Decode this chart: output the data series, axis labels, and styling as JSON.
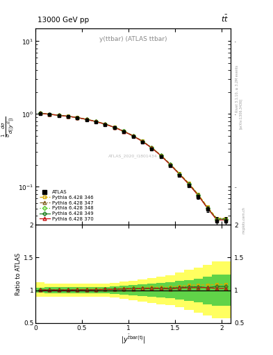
{
  "title_top": "13000 GeV pp",
  "title_right": "tt",
  "plot_label": "y(ttbar) (ATLAS ttbar)",
  "watermark": "ATLAS_2020_I1801434",
  "rivet_label": "Rivet 3.1.10, ≥ 3.2M events",
  "arxiv_label": "[arXiv:1306.3436]",
  "mcplots_label": "mcplots.cern.ch",
  "ylabel_ratio": "Ratio to ATLAS",
  "xlim": [
    0,
    2.1
  ],
  "ylim_main": [
    0.03,
    15
  ],
  "ylim_ratio": [
    0.5,
    2.0
  ],
  "x_pts": [
    0.05,
    0.15,
    0.25,
    0.35,
    0.45,
    0.55,
    0.65,
    0.75,
    0.85,
    0.95,
    1.05,
    1.15,
    1.25,
    1.35,
    1.45,
    1.55,
    1.65,
    1.75,
    1.85,
    1.95,
    2.05
  ],
  "y_atlas": [
    1.02,
    0.985,
    0.955,
    0.925,
    0.885,
    0.835,
    0.78,
    0.715,
    0.645,
    0.565,
    0.488,
    0.41,
    0.332,
    0.26,
    0.196,
    0.143,
    0.104,
    0.073,
    0.049,
    0.034,
    0.034
  ],
  "y_atlas_err": [
    0.035,
    0.028,
    0.024,
    0.022,
    0.02,
    0.018,
    0.017,
    0.015,
    0.014,
    0.013,
    0.012,
    0.01,
    0.009,
    0.008,
    0.007,
    0.007,
    0.006,
    0.005,
    0.004,
    0.004,
    0.004
  ],
  "y_p346": [
    1.03,
    0.995,
    0.965,
    0.935,
    0.898,
    0.848,
    0.793,
    0.73,
    0.66,
    0.582,
    0.505,
    0.425,
    0.347,
    0.272,
    0.205,
    0.152,
    0.112,
    0.079,
    0.053,
    0.037,
    0.037
  ],
  "y_p347": [
    1.028,
    0.993,
    0.963,
    0.932,
    0.895,
    0.845,
    0.79,
    0.728,
    0.658,
    0.58,
    0.503,
    0.423,
    0.344,
    0.269,
    0.203,
    0.149,
    0.109,
    0.077,
    0.051,
    0.036,
    0.036
  ],
  "y_p348": [
    1.025,
    0.99,
    0.96,
    0.929,
    0.892,
    0.842,
    0.787,
    0.725,
    0.655,
    0.577,
    0.5,
    0.421,
    0.342,
    0.267,
    0.201,
    0.148,
    0.108,
    0.076,
    0.051,
    0.035,
    0.035
  ],
  "y_p349": [
    1.026,
    0.991,
    0.961,
    0.93,
    0.893,
    0.843,
    0.788,
    0.726,
    0.656,
    0.578,
    0.501,
    0.422,
    0.343,
    0.268,
    0.202,
    0.149,
    0.109,
    0.077,
    0.051,
    0.036,
    0.036
  ],
  "y_p370": [
    1.024,
    0.989,
    0.959,
    0.928,
    0.891,
    0.841,
    0.786,
    0.724,
    0.654,
    0.576,
    0.499,
    0.42,
    0.341,
    0.267,
    0.2,
    0.148,
    0.108,
    0.076,
    0.051,
    0.035,
    0.035
  ],
  "r_p346": [
    1.01,
    1.01,
    1.01,
    1.01,
    1.015,
    1.016,
    1.016,
    1.021,
    1.023,
    1.03,
    1.035,
    1.037,
    1.045,
    1.046,
    1.046,
    1.063,
    1.077,
    1.082,
    1.082,
    1.088,
    1.088
  ],
  "r_p347": [
    1.008,
    1.008,
    1.008,
    1.008,
    1.011,
    1.012,
    1.013,
    1.018,
    1.02,
    1.026,
    1.031,
    1.032,
    1.036,
    1.035,
    1.036,
    1.049,
    1.058,
    1.055,
    1.041,
    1.059,
    1.059
  ],
  "r_p348": [
    1.005,
    1.005,
    1.005,
    1.004,
    1.008,
    1.008,
    1.009,
    1.014,
    1.015,
    1.021,
    1.025,
    1.027,
    1.03,
    1.027,
    1.026,
    1.035,
    1.038,
    1.041,
    1.041,
    1.029,
    1.029
  ],
  "r_p349": [
    1.006,
    1.006,
    1.006,
    1.005,
    1.009,
    1.01,
    1.01,
    1.015,
    1.017,
    1.023,
    1.027,
    1.029,
    1.033,
    1.031,
    1.031,
    1.042,
    1.048,
    1.055,
    1.041,
    1.059,
    1.059
  ],
  "r_p370": [
    1.004,
    1.004,
    1.004,
    1.003,
    1.007,
    1.007,
    1.008,
    1.013,
    1.014,
    1.02,
    1.023,
    1.025,
    1.027,
    1.027,
    1.02,
    1.035,
    1.038,
    1.041,
    1.041,
    1.029,
    1.029
  ],
  "color_atlas": "#000000",
  "color_p346": "#d4aa00",
  "color_p347": "#806020",
  "color_p348": "#50c820",
  "color_p349": "#208020",
  "color_p370": "#c81010",
  "band_yellow": "#ffff44",
  "band_green": "#44cc44",
  "bg_color": "#ffffff",
  "band_x_edges": [
    0.0,
    0.1,
    0.2,
    0.3,
    0.4,
    0.5,
    0.6,
    0.7,
    0.8,
    0.9,
    1.0,
    1.1,
    1.2,
    1.3,
    1.4,
    1.5,
    1.6,
    1.7,
    1.8,
    1.9,
    2.0,
    2.1
  ],
  "band_yellow_lo": [
    0.9,
    0.9,
    0.9,
    0.9,
    0.9,
    0.9,
    0.9,
    0.9,
    0.89,
    0.87,
    0.85,
    0.83,
    0.81,
    0.79,
    0.77,
    0.74,
    0.7,
    0.66,
    0.62,
    0.57,
    0.57
  ],
  "band_yellow_hi": [
    1.12,
    1.1,
    1.1,
    1.1,
    1.1,
    1.1,
    1.1,
    1.1,
    1.11,
    1.13,
    1.15,
    1.17,
    1.19,
    1.21,
    1.23,
    1.27,
    1.31,
    1.35,
    1.39,
    1.44,
    1.44
  ],
  "band_green_lo": [
    0.96,
    0.95,
    0.95,
    0.95,
    0.95,
    0.95,
    0.95,
    0.95,
    0.94,
    0.93,
    0.92,
    0.91,
    0.9,
    0.89,
    0.88,
    0.86,
    0.84,
    0.82,
    0.79,
    0.76,
    0.76
  ],
  "band_green_hi": [
    1.04,
    1.05,
    1.05,
    1.05,
    1.05,
    1.05,
    1.05,
    1.05,
    1.06,
    1.07,
    1.08,
    1.09,
    1.1,
    1.11,
    1.12,
    1.14,
    1.16,
    1.18,
    1.21,
    1.24,
    1.24
  ]
}
